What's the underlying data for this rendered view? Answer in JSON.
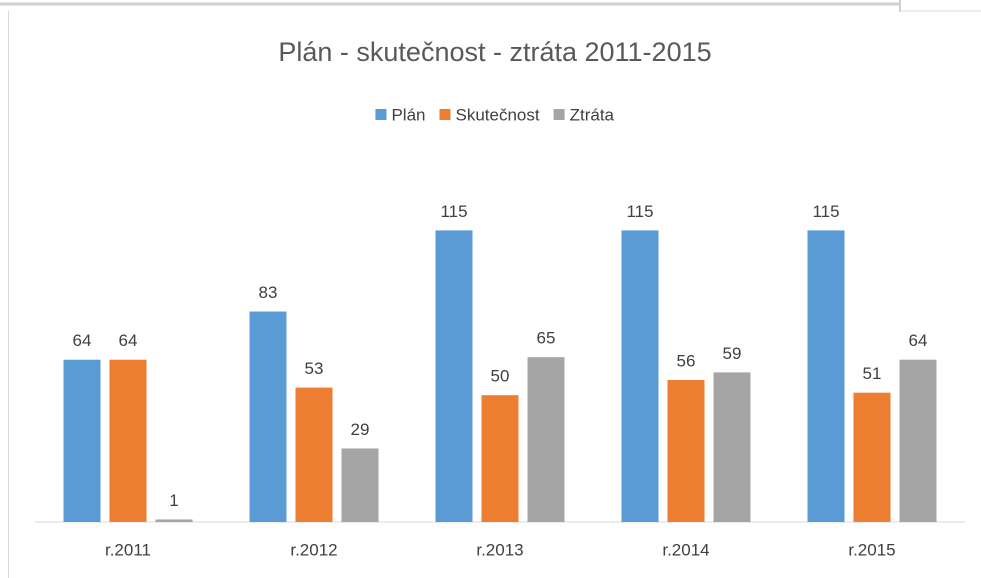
{
  "chart_data": {
    "type": "bar",
    "title": "Plán - skutečnost - ztráta 2011-2015",
    "categories": [
      "r.2011",
      "r.2012",
      "r.2013",
      "r.2014",
      "r.2015"
    ],
    "series": [
      {
        "name": "Plán",
        "color": "#5b9bd5",
        "values": [
          64,
          83,
          115,
          115,
          115
        ]
      },
      {
        "name": "Skutečnost",
        "color": "#ed7d31",
        "values": [
          64,
          53,
          50,
          56,
          51
        ]
      },
      {
        "name": "Ztráta",
        "color": "#a5a5a5",
        "values": [
          1,
          29,
          65,
          59,
          64
        ]
      }
    ],
    "ylim": [
      0,
      140
    ],
    "grid": false,
    "legend": "top"
  }
}
